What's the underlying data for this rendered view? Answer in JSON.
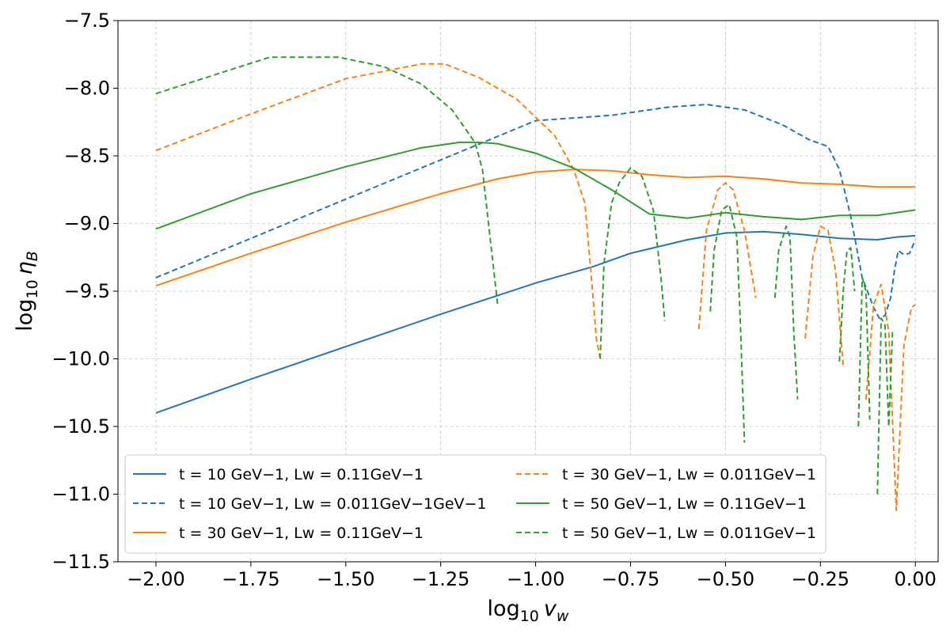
{
  "chart_data": {
    "type": "line",
    "xlabel": "log10 vw",
    "ylabel": "log10 ηB",
    "xlim": [
      -2.1,
      0.06
    ],
    "ylim": [
      -11.5,
      -7.5
    ],
    "xticks": [
      "−2.00",
      "−1.75",
      "−1.50",
      "−1.25",
      "−1.00",
      "−0.75",
      "−0.50",
      "−0.25",
      "0.00"
    ],
    "yticks": [
      "−7.5",
      "−8.0",
      "−8.5",
      "−9.0",
      "−9.5",
      "−10.0",
      "−10.5",
      "−11.0",
      "−11.5"
    ],
    "grid": true,
    "legend_position": "lower-center",
    "series": [
      {
        "name": "t = 10 GeV−1,  Lw = 0.11GeV−1",
        "color": "#1f77b4",
        "dash": "solid",
        "x": [
          -2.0,
          -1.75,
          -1.5,
          -1.25,
          -1.0,
          -0.85,
          -0.75,
          -0.6,
          -0.5,
          -0.4,
          -0.3,
          -0.2,
          -0.1,
          -0.05,
          0.0
        ],
        "y": [
          -10.4,
          -10.15,
          -9.91,
          -9.67,
          -9.44,
          -9.32,
          -9.22,
          -9.12,
          -9.07,
          -9.06,
          -9.08,
          -9.11,
          -9.12,
          -9.1,
          -9.09
        ]
      },
      {
        "name": "t = 10 GeV−1,  Lw = 0.011GeV−1GeV−1",
        "color": "#1f77b4",
        "dash": "dashed",
        "x": [
          -2.0,
          -1.75,
          -1.5,
          -1.25,
          -1.0,
          -0.8,
          -0.65,
          -0.55,
          -0.45,
          -0.35,
          -0.28,
          -0.23,
          -0.2,
          -0.17,
          -0.14,
          -0.11,
          -0.095,
          -0.08,
          -0.065,
          -0.055,
          -0.045,
          -0.03,
          -0.015,
          0.0
        ],
        "y": [
          -9.4,
          -9.11,
          -8.82,
          -8.53,
          -8.24,
          -8.2,
          -8.14,
          -8.12,
          -8.16,
          -8.27,
          -8.38,
          -8.43,
          -8.6,
          -8.95,
          -9.4,
          -9.62,
          -9.7,
          -9.68,
          -9.55,
          -9.35,
          -9.2,
          -9.23,
          -9.22,
          -9.12
        ]
      },
      {
        "name": "t = 30 GeV−1,  Lw = 0.11GeV−1",
        "color": "#ff7f0e",
        "dash": "solid",
        "x": [
          -2.0,
          -1.75,
          -1.5,
          -1.25,
          -1.1,
          -1.0,
          -0.9,
          -0.8,
          -0.7,
          -0.6,
          -0.5,
          -0.4,
          -0.3,
          -0.2,
          -0.1,
          0.0
        ],
        "y": [
          -9.46,
          -9.22,
          -8.99,
          -8.78,
          -8.67,
          -8.62,
          -8.6,
          -8.61,
          -8.64,
          -8.66,
          -8.65,
          -8.67,
          -8.7,
          -8.71,
          -8.73,
          -8.73
        ]
      },
      {
        "name": "t = 30 GeV−1,  Lw = 0.011GeV−1",
        "color": "#ff7f0e",
        "dash": "dashed",
        "x": [
          -2.0,
          -1.75,
          -1.5,
          -1.3,
          -1.24,
          -1.15,
          -1.05,
          -0.95,
          -0.9,
          -0.87,
          -0.85,
          -0.84,
          -0.83,
          null,
          -0.57,
          -0.55,
          -0.52,
          -0.5,
          -0.48,
          -0.45,
          -0.42,
          null,
          -0.29,
          -0.27,
          -0.25,
          -0.23,
          -0.21,
          -0.19,
          null,
          -0.13,
          -0.11,
          -0.09,
          -0.07,
          -0.05,
          -0.03,
          -0.01,
          0.0
        ],
        "y": [
          -8.46,
          -8.19,
          -7.93,
          -7.82,
          -7.82,
          -7.92,
          -8.08,
          -8.35,
          -8.6,
          -8.85,
          -9.5,
          -9.85,
          -10.0,
          null,
          -9.78,
          -9.05,
          -8.75,
          -8.7,
          -8.75,
          -9.05,
          -9.55,
          null,
          -9.85,
          -9.25,
          -9.02,
          -9.05,
          -9.35,
          -10.05,
          null,
          -10.3,
          -9.6,
          -9.45,
          -9.8,
          -11.12,
          -9.9,
          -9.62,
          -9.6
        ]
      },
      {
        "name": "t = 50 GeV−1,  Lw = 0.11GeV−1",
        "color": "#2ca02c",
        "dash": "solid",
        "x": [
          -2.0,
          -1.75,
          -1.5,
          -1.3,
          -1.2,
          -1.15,
          -1.1,
          -1.0,
          -0.9,
          -0.8,
          -0.7,
          -0.6,
          -0.5,
          -0.4,
          -0.3,
          -0.2,
          -0.1,
          0.0
        ],
        "y": [
          -9.04,
          -8.78,
          -8.58,
          -8.44,
          -8.4,
          -8.4,
          -8.41,
          -8.48,
          -8.59,
          -8.75,
          -8.93,
          -8.96,
          -8.92,
          -8.95,
          -8.97,
          -8.94,
          -8.94,
          -8.9
        ]
      },
      {
        "name": "t = 50 GeV−1,  Lw = 0.011GeV−1",
        "color": "#2ca02c",
        "dash": "dashed",
        "x": [
          -2.0,
          -1.7,
          -1.52,
          -1.4,
          -1.3,
          -1.22,
          -1.16,
          -1.14,
          -1.12,
          -1.1,
          null,
          -0.83,
          -0.82,
          -0.8,
          -0.78,
          -0.75,
          -0.72,
          -0.69,
          -0.67,
          -0.66,
          null,
          -0.54,
          -0.53,
          -0.51,
          -0.49,
          -0.47,
          -0.46,
          -0.45,
          null,
          -0.37,
          -0.36,
          -0.34,
          -0.33,
          -0.32,
          -0.31,
          null,
          -0.2,
          -0.19,
          -0.18,
          -0.17,
          -0.16,
          null,
          -0.15,
          -0.14,
          -0.13,
          -0.12,
          null,
          -0.1,
          -0.09,
          -0.08,
          -0.07,
          -0.06
        ],
        "y": [
          -8.04,
          -7.77,
          -7.77,
          -7.84,
          -7.97,
          -8.16,
          -8.4,
          -8.6,
          -9.1,
          -9.6,
          null,
          -10.0,
          -9.3,
          -8.85,
          -8.7,
          -8.59,
          -8.65,
          -8.9,
          -9.4,
          -9.72,
          null,
          -9.65,
          -9.2,
          -8.9,
          -8.86,
          -9.1,
          -9.8,
          -10.62,
          null,
          -9.55,
          -9.2,
          -9.02,
          -9.1,
          -9.8,
          -10.3,
          null,
          -10.02,
          -9.5,
          -9.2,
          -9.18,
          -9.5,
          null,
          -10.5,
          -9.4,
          -9.5,
          -10.45,
          null,
          -11.0,
          -9.7,
          -9.75,
          -10.5,
          -9.8
        ]
      }
    ]
  }
}
